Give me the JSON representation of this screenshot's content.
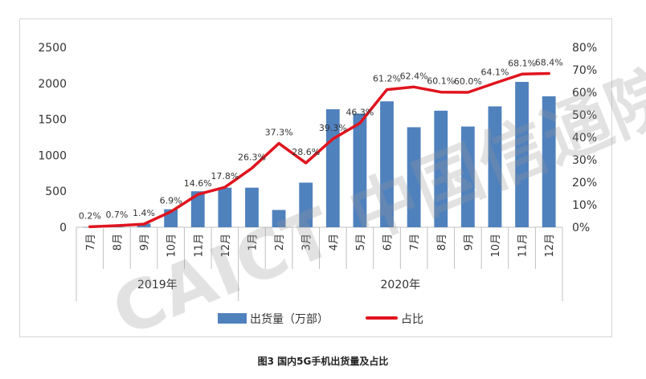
{
  "chart_data": {
    "type": "bar+line",
    "title": "图3  国内5G手机出货量及占比",
    "months": [
      "7月",
      "8月",
      "9月",
      "10月",
      "11月",
      "12月",
      "1月",
      "2月",
      "3月",
      "4月",
      "5月",
      "6月",
      "7月",
      "8月",
      "9月",
      "10月",
      "11月",
      "12月"
    ],
    "year_groups": [
      {
        "label": "2019年",
        "start": 0,
        "end": 5
      },
      {
        "label": "2020年",
        "start": 6,
        "end": 17
      }
    ],
    "series": [
      {
        "name": "出货量（万部）",
        "type": "bar",
        "axis": "left",
        "color": "#4f81bd",
        "values": [
          2,
          7,
          50,
          250,
          500,
          550,
          550,
          240,
          620,
          1640,
          1580,
          1750,
          1390,
          1620,
          1400,
          1680,
          2020,
          1820
        ]
      },
      {
        "name": "占比",
        "type": "line",
        "axis": "right",
        "color": "#e0141e",
        "values": [
          0.2,
          0.7,
          1.4,
          6.9,
          14.6,
          17.8,
          26.3,
          37.3,
          28.6,
          39.3,
          46.3,
          61.2,
          62.4,
          60.1,
          60.0,
          64.1,
          68.1,
          68.4
        ],
        "labels": [
          "0.2%",
          "0.7%",
          "1.4%",
          "6.9%",
          "14.6%",
          "17.8%",
          "26.3%",
          "37.3%",
          "28.6%",
          "39.3%",
          "46.3%",
          "61.2%",
          "62.4%",
          "60.1%",
          "60.0%",
          "64.1%",
          "68.1%",
          "68.4%"
        ]
      }
    ],
    "y_left": {
      "min": 0,
      "max": 2500,
      "ticks": [
        "0",
        "500",
        "1000",
        "1500",
        "2000",
        "2500"
      ]
    },
    "y_right": {
      "min": 0,
      "max": 80,
      "ticks": [
        "0%",
        "10%",
        "20%",
        "30%",
        "40%",
        "50%",
        "60%",
        "70%",
        "80%"
      ]
    },
    "legend_position": "bottom",
    "grid": false
  },
  "watermark": "CAICT 中国信通院",
  "caption": "图3  国内5G手机出货量及占比"
}
